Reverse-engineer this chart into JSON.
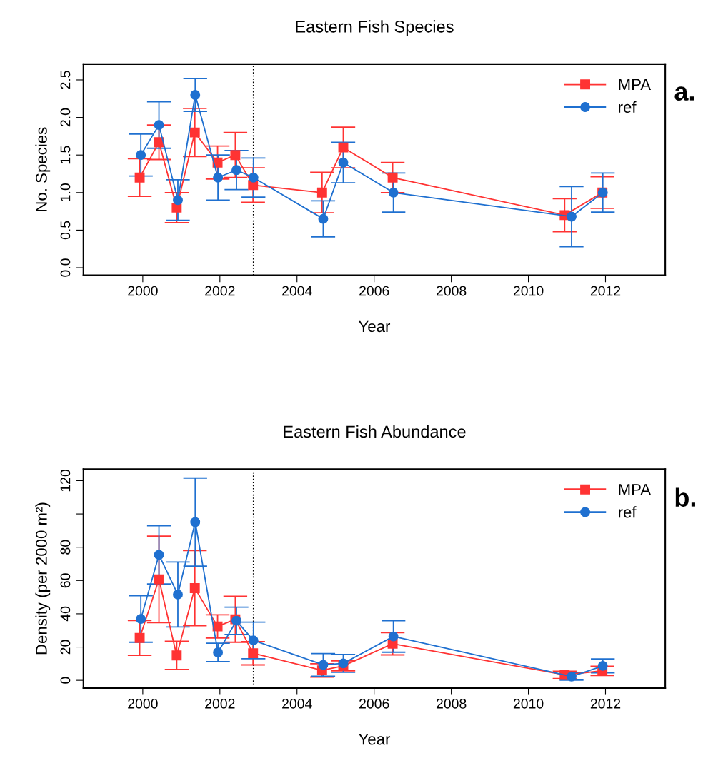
{
  "chart_data": [
    {
      "type": "line",
      "title": "Eastern Fish Species",
      "xlabel": "Year",
      "ylabel": "No. Species",
      "annotations": [
        "a."
      ],
      "xlim": [
        1998.46,
        2013.55
      ],
      "xticks": [
        2000,
        2002,
        2004,
        2006,
        2008,
        2010,
        2012
      ],
      "ylim": [
        -0.1,
        2.71
      ],
      "yticks": [
        {
          "value": 0,
          "label": "0.0"
        },
        {
          "value": 0.5,
          "label": "0.5"
        },
        {
          "value": 1.0,
          "label": "1.0"
        },
        {
          "value": 1.5,
          "label": "1.5"
        },
        {
          "value": 2.0,
          "label": "2.0"
        },
        {
          "value": 2.5,
          "label": "2.5"
        }
      ],
      "grid": false,
      "legend": "top right",
      "ref_lines": [
        {
          "axis": "x",
          "value": 2002.87,
          "color": "#000000",
          "line_style": "dotted"
        }
      ],
      "series": [
        {
          "name": "MPA",
          "color": "#ff3333",
          "marker": "square",
          "x": [
            1999.92,
            2000.42,
            2000.88,
            2001.35,
            2001.94,
            2002.4,
            2002.86,
            2004.65,
            2005.2,
            2006.48,
            2010.94,
            2011.92
          ],
          "values": [
            1.2,
            1.67,
            0.8,
            1.8,
            1.4,
            1.5,
            1.1,
            1.0,
            1.6,
            1.2,
            0.7,
            1.0
          ],
          "errors": [
            0.25,
            0.23,
            0.2,
            0.32,
            0.22,
            0.3,
            0.23,
            0.27,
            0.27,
            0.2,
            0.22,
            0.21
          ]
        },
        {
          "name": "ref",
          "color": "#1f70d0",
          "marker": "circle",
          "x": [
            1999.95,
            2000.42,
            2000.91,
            2001.36,
            2001.95,
            2002.43,
            2002.87,
            2004.68,
            2005.2,
            2006.5,
            2011.12,
            2011.93
          ],
          "values": [
            1.5,
            1.9,
            0.9,
            2.3,
            1.2,
            1.3,
            1.2,
            0.65,
            1.4,
            1.0,
            0.68,
            1.0
          ],
          "errors": [
            0.28,
            0.31,
            0.27,
            0.22,
            0.3,
            0.26,
            0.26,
            0.24,
            0.27,
            0.26,
            0.4,
            0.26
          ]
        }
      ]
    },
    {
      "type": "line",
      "title": "Eastern Fish Abundance",
      "xlabel": "Year",
      "ylabel": "Density (per 2000 m²)",
      "annotations": [
        "b."
      ],
      "xlim": [
        1998.46,
        2013.55
      ],
      "xticks": [
        2000,
        2002,
        2004,
        2006,
        2008,
        2010,
        2012
      ],
      "ylim": [
        -4.6,
        126.9
      ],
      "yticks": [
        0,
        20,
        40,
        60,
        80,
        {
          "value": 100,
          "label": null
        },
        120
      ],
      "grid": false,
      "legend": "top right",
      "ref_lines": [
        {
          "axis": "x",
          "value": 2002.87,
          "color": "#000000",
          "line_style": "dotted"
        }
      ],
      "series": [
        {
          "name": "MPA",
          "color": "#ff3333",
          "marker": "square",
          "x": [
            1999.92,
            2000.42,
            2000.88,
            2001.35,
            2001.94,
            2002.4,
            2002.86,
            2004.65,
            2005.2,
            2006.48,
            2010.94,
            2011.92
          ],
          "values": [
            25.5,
            60.7,
            15,
            55.4,
            32.4,
            36.7,
            16.3,
            6,
            8.7,
            22,
            3.3,
            5.7
          ],
          "errors": [
            10.5,
            26,
            8.5,
            22.6,
            7,
            13.8,
            7,
            4,
            3,
            6.7,
            2.2,
            2.8
          ]
        },
        {
          "name": "ref",
          "color": "#1f70d0",
          "marker": "circle",
          "x": [
            1999.95,
            2000.42,
            2000.91,
            2001.36,
            2001.95,
            2002.43,
            2002.87,
            2004.68,
            2005.2,
            2006.5,
            2011.12,
            2011.93
          ],
          "values": [
            36.9,
            75.4,
            51.6,
            95.1,
            16.8,
            35.8,
            24,
            9.3,
            10.2,
            26.4,
            2.3,
            8.7
          ],
          "errors": [
            14,
            17.5,
            19.5,
            26.5,
            5.5,
            8.2,
            11,
            6.8,
            5.4,
            9.5,
            2.2,
            4.2
          ]
        }
      ]
    }
  ]
}
